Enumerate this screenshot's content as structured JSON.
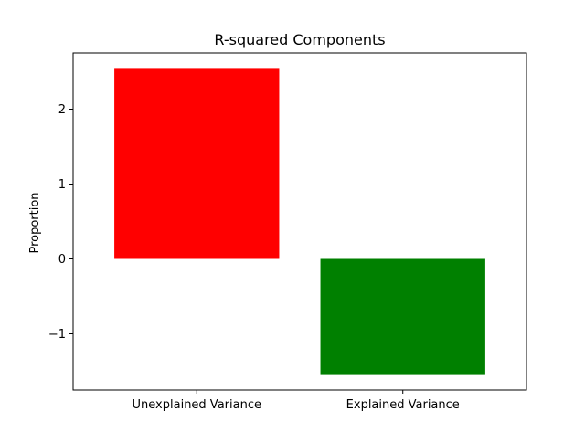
{
  "chart_data": {
    "type": "bar",
    "title": "R-squared Components",
    "xlabel": "",
    "ylabel": "Proportion",
    "categories": [
      "Unexplained Variance",
      "Explained Variance"
    ],
    "values": [
      2.55,
      -1.55
    ],
    "colors": [
      "#ff0000",
      "#008000"
    ],
    "ylim": [
      -1.75,
      2.75
    ],
    "yticks": [
      -1,
      0,
      1,
      2
    ],
    "ytick_labels": [
      "−1",
      "0",
      "1",
      "2"
    ],
    "grid": false,
    "legend": false
  }
}
